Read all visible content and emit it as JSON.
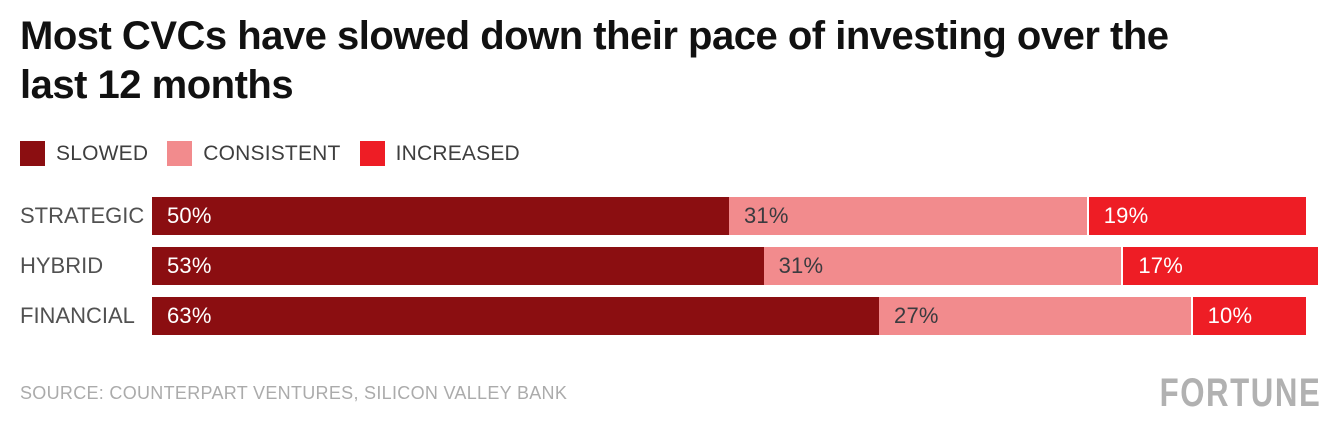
{
  "header": {
    "title": "Most CVCs have slowed down their pace of investing over the last 12 months",
    "title_lines": [
      "Most CVCs have slowed down their pace of investing over the",
      "last 12 months"
    ]
  },
  "chart_data": {
    "type": "bar",
    "variant": "horizontal-stacked",
    "title": "Most CVCs have slowed down their pace of investing over the last 12 months",
    "categories": [
      "STRATEGIC",
      "HYBRID",
      "FINANCIAL"
    ],
    "series": [
      {
        "name": "SLOWED",
        "color": "#8b0e11",
        "label_color": "#ffffff",
        "values": [
          50,
          53,
          63
        ]
      },
      {
        "name": "CONSISTENT",
        "color": "#f28b8d",
        "label_color": "#3a3b3f",
        "values": [
          31,
          31,
          27
        ]
      },
      {
        "name": "INCREASED",
        "color": "#ee1d25",
        "label_color": "#ffffff",
        "values": [
          19,
          17,
          10
        ]
      }
    ],
    "value_suffix": "%",
    "xlim": [
      0,
      100
    ],
    "legend_position": "top",
    "grid": false
  },
  "footer": {
    "source": "SOURCE: COUNTERPART VENTURES, SILICON VALLEY BANK",
    "brand": "FORTUNE"
  }
}
